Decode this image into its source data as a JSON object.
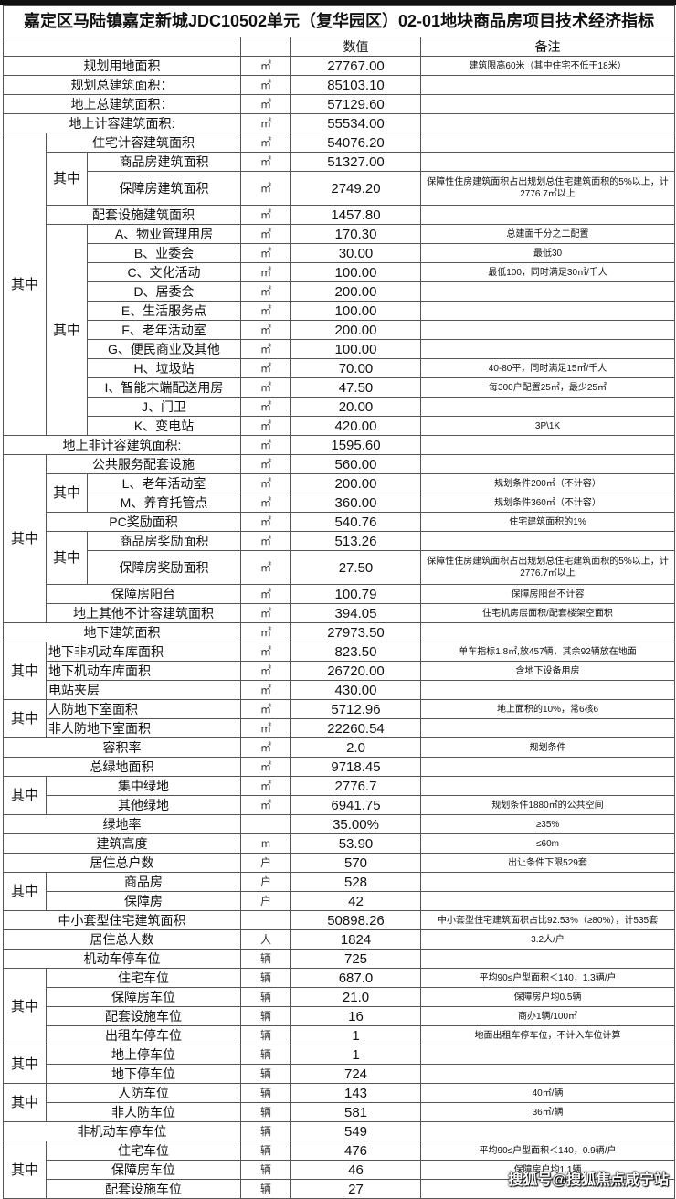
{
  "title": "嘉定区马陆镇嘉定新城JDC10502单元（复华园区）02-01地块商品房项目技术经济指标",
  "headers": {
    "value": "数值",
    "note": "备注"
  },
  "group_label": "其中",
  "watermark": "搜狐号@搜狐焦点咸宁站",
  "rows": [
    {
      "label": "规划用地面积",
      "unit": "㎡",
      "value": "27767.00",
      "note": "建筑限高60米（其中住宅不低于18米）"
    },
    {
      "label": "规划总建筑面积：",
      "unit": "㎡",
      "value": "85103.10",
      "note": ""
    },
    {
      "label": "地上总建筑面积：",
      "unit": "㎡",
      "value": "57129.60",
      "note": ""
    },
    {
      "label": "地上计容建筑面积:",
      "unit": "㎡",
      "value": "55534.00",
      "note": ""
    },
    {
      "label": "住宅计容建筑面积",
      "unit": "㎡",
      "value": "54076.20",
      "note": ""
    },
    {
      "label": "商品房建筑面积",
      "unit": "㎡",
      "value": "51327.00",
      "note": ""
    },
    {
      "label": "保障房建筑面积",
      "unit": "㎡",
      "value": "2749.20",
      "note": "保障性住房建筑面积占出规划总住宅建筑面积的5%以上，计2776.7㎡以上"
    },
    {
      "label": "配套设施建筑面积",
      "unit": "㎡",
      "value": "1457.80",
      "note": ""
    },
    {
      "label": "A、物业管理用房",
      "unit": "㎡",
      "value": "170.30",
      "note": "总建面千分之二配置"
    },
    {
      "label": "B、业委会",
      "unit": "㎡",
      "value": "30.00",
      "note": "最低30"
    },
    {
      "label": "C、文化活动",
      "unit": "㎡",
      "value": "100.00",
      "note": "最低100，同时满足30㎡/千人"
    },
    {
      "label": "D、居委会",
      "unit": "㎡",
      "value": "200.00",
      "note": ""
    },
    {
      "label": "E、生活服务点",
      "unit": "㎡",
      "value": "100.00",
      "note": ""
    },
    {
      "label": "F、老年活动室",
      "unit": "㎡",
      "value": "200.00",
      "note": ""
    },
    {
      "label": "G、便民商业及其他",
      "unit": "㎡",
      "value": "100.00",
      "note": ""
    },
    {
      "label": "H、垃圾站",
      "unit": "㎡",
      "value": "70.00",
      "note": "40-80平，同时满足15㎡/千人"
    },
    {
      "label": "I、智能末端配送用房",
      "unit": "㎡",
      "value": "47.50",
      "note": "每300户配置25㎡，最少25㎡"
    },
    {
      "label": "J、门卫",
      "unit": "㎡",
      "value": "20.00",
      "note": ""
    },
    {
      "label": "K、变电站",
      "unit": "㎡",
      "value": "420.00",
      "note": "3P\\1K"
    },
    {
      "label": "地上非计容建筑面积:",
      "unit": "㎡",
      "value": "1595.60",
      "note": ""
    },
    {
      "label": "公共服务配套设施",
      "unit": "㎡",
      "value": "560.00",
      "note": ""
    },
    {
      "label": "L、老年活动室",
      "unit": "㎡",
      "value": "200.00",
      "note": "规划条件200㎡（不计容）"
    },
    {
      "label": "M、养育托管点",
      "unit": "㎡",
      "value": "360.00",
      "note": "规划条件360㎡（不计容）"
    },
    {
      "label": "PC奖励面积",
      "unit": "㎡",
      "value": "540.76",
      "note": "住宅建筑面积的1%"
    },
    {
      "label": "商品房奖励面积",
      "unit": "㎡",
      "value": "513.26",
      "note": ""
    },
    {
      "label": "保障房奖励面积",
      "unit": "㎡",
      "value": "27.50",
      "note": "保障性住房建筑面积占出规划总住宅建筑面积的5%以上，计2776.7㎡以上"
    },
    {
      "label": "保障房阳台",
      "unit": "㎡",
      "value": "100.79",
      "note": "保障房阳台不计容"
    },
    {
      "label": "地上其他不计容建筑面积",
      "unit": "㎡",
      "value": "394.05",
      "note": "住宅机房层面积/配套楼架空面积"
    },
    {
      "label": "地下建筑面积",
      "unit": "㎡",
      "value": "27973.50",
      "note": ""
    },
    {
      "label": "地下非机动车库面积",
      "unit": "㎡",
      "value": "823.50",
      "note": "单车指标1.8㎡,放457辆，其余92辆放在地面"
    },
    {
      "label": "地下机动车库面积",
      "unit": "㎡",
      "value": "26720.00",
      "note": "含地下设备用房"
    },
    {
      "label": "电站夹层",
      "unit": "㎡",
      "value": "430.00",
      "note": ""
    },
    {
      "label": "人防地下室面积",
      "unit": "㎡",
      "value": "5712.96",
      "note": "地上面积的10%，常6核6"
    },
    {
      "label": "非人防地下室面积",
      "unit": "㎡",
      "value": "22260.54",
      "note": ""
    },
    {
      "label": "容积率",
      "unit": "㎡",
      "value": "2.0",
      "note": "规划条件"
    },
    {
      "label": "总绿地面积",
      "unit": "㎡",
      "value": "9718.45",
      "note": ""
    },
    {
      "label": "集中绿地",
      "unit": "㎡",
      "value": "2776.7",
      "note": ""
    },
    {
      "label": "其他绿地",
      "unit": "㎡",
      "value": "6941.75",
      "note": "规划条件1880㎡的公共空间"
    },
    {
      "label": "绿地率",
      "unit": "",
      "value": "35.00%",
      "note": "≥35%"
    },
    {
      "label": "建筑高度",
      "unit": "m",
      "value": "53.90",
      "note": "≤60m"
    },
    {
      "label": "居住总户数",
      "unit": "户",
      "value": "570",
      "note": "出让条件下限529套"
    },
    {
      "label": "商品房",
      "unit": "户",
      "value": "528",
      "note": ""
    },
    {
      "label": "保障房",
      "unit": "户",
      "value": "42",
      "note": ""
    },
    {
      "label": "中小套型住宅建筑面积",
      "unit": "",
      "value": "50898.26",
      "note": "中小套型住宅建筑面积占比92.53%（≥80%），计535套"
    },
    {
      "label": "居住总人数",
      "unit": "人",
      "value": "1824",
      "note": "3.2人/户"
    },
    {
      "label": "机动车停车位",
      "unit": "辆",
      "value": "725",
      "note": ""
    },
    {
      "label": "住宅车位",
      "unit": "辆",
      "value": "687.0",
      "note": "平均90≤户型面积＜140，1.3辆/户"
    },
    {
      "label": "保障房车位",
      "unit": "辆",
      "value": "21.0",
      "note": "保障房户均0.5辆"
    },
    {
      "label": "配套设施车位",
      "unit": "辆",
      "value": "16",
      "note": "商办1辆/100㎡"
    },
    {
      "label": "出租车停车位",
      "unit": "辆",
      "value": "1",
      "note": "地面出租车停车位，不计入车位计算"
    },
    {
      "label": "地上停车位",
      "unit": "辆",
      "value": "1",
      "note": ""
    },
    {
      "label": "地下停车位",
      "unit": "辆",
      "value": "724",
      "note": ""
    },
    {
      "label": "人防车位",
      "unit": "辆",
      "value": "143",
      "note": "40㎡/辆"
    },
    {
      "label": "非人防车位",
      "unit": "辆",
      "value": "581",
      "note": "36㎡/辆"
    },
    {
      "label": "非机动车停车位",
      "unit": "辆",
      "value": "549",
      "note": ""
    },
    {
      "label": "住宅车位",
      "unit": "辆",
      "value": "476",
      "note": "平均90≤户型面积＜140，0.9辆/户"
    },
    {
      "label": "保障房车位",
      "unit": "辆",
      "value": "46",
      "note": "保障房户均1.1辆"
    },
    {
      "label": "配套设施车位",
      "unit": "辆",
      "value": "27",
      "note": ""
    }
  ]
}
